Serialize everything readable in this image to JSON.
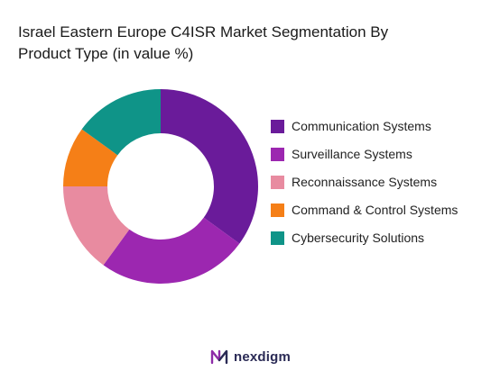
{
  "chart_data": {
    "type": "pie",
    "donut": true,
    "title_lines": [
      "Israel Eastern Europe C4ISR Market Segmentation By",
      "Product Type (in value %)"
    ],
    "legend_position": "right",
    "categories": [
      "Communication Systems",
      "Surveillance Systems",
      "Reconnaissance Systems",
      "Command & Control Systems",
      "Cybersecurity Solutions"
    ],
    "values": [
      35,
      25,
      15,
      10,
      15
    ],
    "colors": [
      "#6a1b9a",
      "#9c27b0",
      "#e88ba0",
      "#f57f17",
      "#0f9488"
    ]
  },
  "brand": {
    "name": "nexdigm"
  }
}
